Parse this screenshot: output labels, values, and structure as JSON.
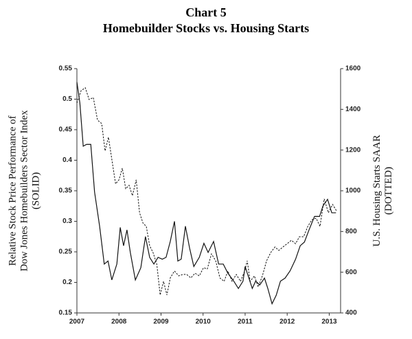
{
  "chart_data": {
    "type": "line",
    "title": "Chart 5",
    "subtitle": "Homebuilder Stocks vs. Housing Starts",
    "ylabel": [
      "Relative Stock Price Performance of",
      "Dow Jones Homebuilders Sector Index",
      "(SOLID)"
    ],
    "y2label": [
      "U.S. Housing Starts SAAR",
      "(DOTTED)"
    ],
    "xlim": [
      2007,
      2013.27
    ],
    "xticks": [
      2007,
      2008,
      2009,
      2010,
      2011,
      2012,
      2013
    ],
    "ylim": [
      0.15,
      0.55
    ],
    "yticks": [
      0.15,
      0.2,
      0.25,
      0.3,
      0.35,
      0.4,
      0.45,
      0.5,
      0.55
    ],
    "y2lim": [
      400,
      1600
    ],
    "y2ticks": [
      400,
      600,
      800,
      1000,
      1200,
      1400,
      1600
    ],
    "series": [
      {
        "color": "#111111",
        "style": "solid",
        "axis": "y",
        "x": [
          2007,
          2007.07,
          2007.15,
          2007.23,
          2007.33,
          2007.42,
          2007.54,
          2007.65,
          2007.74,
          2007.83,
          2007.95,
          2008.03,
          2008.11,
          2008.19,
          2008.27,
          2008.39,
          2008.52,
          2008.63,
          2008.73,
          2008.83,
          2008.93,
          2009.03,
          2009.12,
          2009.22,
          2009.32,
          2009.4,
          2009.48,
          2009.58,
          2009.68,
          2009.78,
          2009.91,
          2010.02,
          2010.12,
          2010.25,
          2010.37,
          2010.48,
          2010.59,
          2010.73,
          2010.84,
          2010.95,
          2011,
          2011.09,
          2011.17,
          2011.25,
          2011.35,
          2011.46,
          2011.54,
          2011.64,
          2011.74,
          2011.84,
          2011.95,
          2012.07,
          2012.2,
          2012.31,
          2012.41,
          2012.52,
          2012.65,
          2012.77,
          2012.85,
          2012.96,
          2013.06,
          2013.16
        ],
        "values": [
          0.528,
          0.494,
          0.423,
          0.426,
          0.426,
          0.348,
          0.292,
          0.23,
          0.235,
          0.204,
          0.23,
          0.29,
          0.26,
          0.286,
          0.249,
          0.204,
          0.224,
          0.275,
          0.241,
          0.23,
          0.241,
          0.238,
          0.241,
          0.267,
          0.3,
          0.235,
          0.238,
          0.292,
          0.256,
          0.226,
          0.241,
          0.264,
          0.249,
          0.267,
          0.23,
          0.23,
          0.215,
          0.202,
          0.19,
          0.202,
          0.226,
          0.207,
          0.19,
          0.202,
          0.196,
          0.207,
          0.19,
          0.165,
          0.179,
          0.202,
          0.207,
          0.219,
          0.238,
          0.26,
          0.266,
          0.286,
          0.308,
          0.308,
          0.325,
          0.336,
          0.314,
          0.314
        ]
      },
      {
        "color": "#111111",
        "style": "dotted",
        "axis": "y2",
        "x": [
          2007,
          2007.1,
          2007.2,
          2007.29,
          2007.39,
          2007.49,
          2007.59,
          2007.67,
          2007.75,
          2007.83,
          2007.92,
          2008,
          2008.08,
          2008.16,
          2008.24,
          2008.32,
          2008.41,
          2008.49,
          2008.57,
          2008.65,
          2008.73,
          2008.81,
          2008.9,
          2008.98,
          2009.06,
          2009.14,
          2009.22,
          2009.32,
          2009.42,
          2009.52,
          2009.61,
          2009.71,
          2009.81,
          2009.91,
          2010.01,
          2010.1,
          2010.2,
          2010.3,
          2010.4,
          2010.5,
          2010.59,
          2010.69,
          2010.79,
          2010.89,
          2010.99,
          2011.05,
          2011.12,
          2011.22,
          2011.31,
          2011.41,
          2011.51,
          2011.61,
          2011.71,
          2011.8,
          2011.9,
          2012,
          2012.1,
          2012.2,
          2012.29,
          2012.39,
          2012.49,
          2012.59,
          2012.69,
          2012.78,
          2012.88,
          2012.98,
          2013.08,
          2013.18
        ],
        "values": [
          1431,
          1492,
          1506,
          1448,
          1458,
          1347,
          1330,
          1196,
          1263,
          1155,
          1034,
          1054,
          1111,
          1010,
          1027,
          976,
          1054,
          892,
          842,
          825,
          730,
          697,
          639,
          488,
          555,
          488,
          572,
          606,
          582,
          589,
          589,
          572,
          595,
          582,
          622,
          616,
          690,
          656,
          572,
          555,
          606,
          555,
          589,
          555,
          606,
          656,
          555,
          582,
          528,
          582,
          656,
          697,
          724,
          707,
          724,
          740,
          757,
          740,
          774,
          774,
          825,
          858,
          865,
          825,
          960,
          892,
          933,
          899
        ]
      }
    ]
  }
}
